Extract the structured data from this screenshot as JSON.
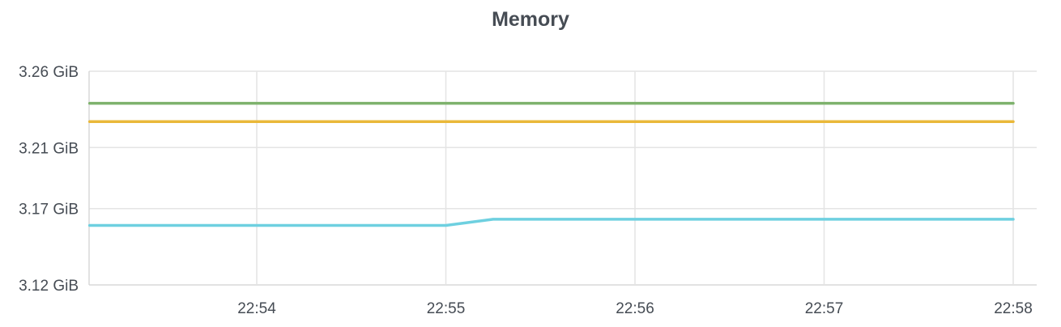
{
  "panel": {
    "title": "Memory"
  },
  "chart_data": {
    "type": "line",
    "title": "Memory",
    "xlabel": "",
    "ylabel": "",
    "y_unit": "GiB",
    "y_ticks": [
      3.12,
      3.17,
      3.21,
      3.26
    ],
    "y_tick_labels": [
      "3.12 GiB",
      "3.17 GiB",
      "3.21 GiB",
      "3.26 GiB"
    ],
    "ylim": [
      3.12,
      3.26
    ],
    "x_tick_labels": [
      "22:54",
      "22:55",
      "22:56",
      "22:57",
      "22:58"
    ],
    "x_ticks": [
      "22:54",
      "22:55",
      "22:56",
      "22:57",
      "22:58"
    ],
    "xlim": [
      "22:53:07",
      "22:58"
    ],
    "grid": true,
    "legend": "none",
    "series": [
      {
        "color": "#7eb26d",
        "x": [
          "22:53:07",
          "22:58"
        ],
        "y": [
          3.239,
          3.239
        ]
      },
      {
        "color": "#eab839",
        "x": [
          "22:53:07",
          "22:58"
        ],
        "y": [
          3.227,
          3.227
        ]
      },
      {
        "color": "#6ed0e0",
        "x": [
          "22:53:07",
          "22:55",
          "22:55:15",
          "22:58"
        ],
        "y": [
          3.159,
          3.159,
          3.163,
          3.163
        ]
      }
    ]
  }
}
